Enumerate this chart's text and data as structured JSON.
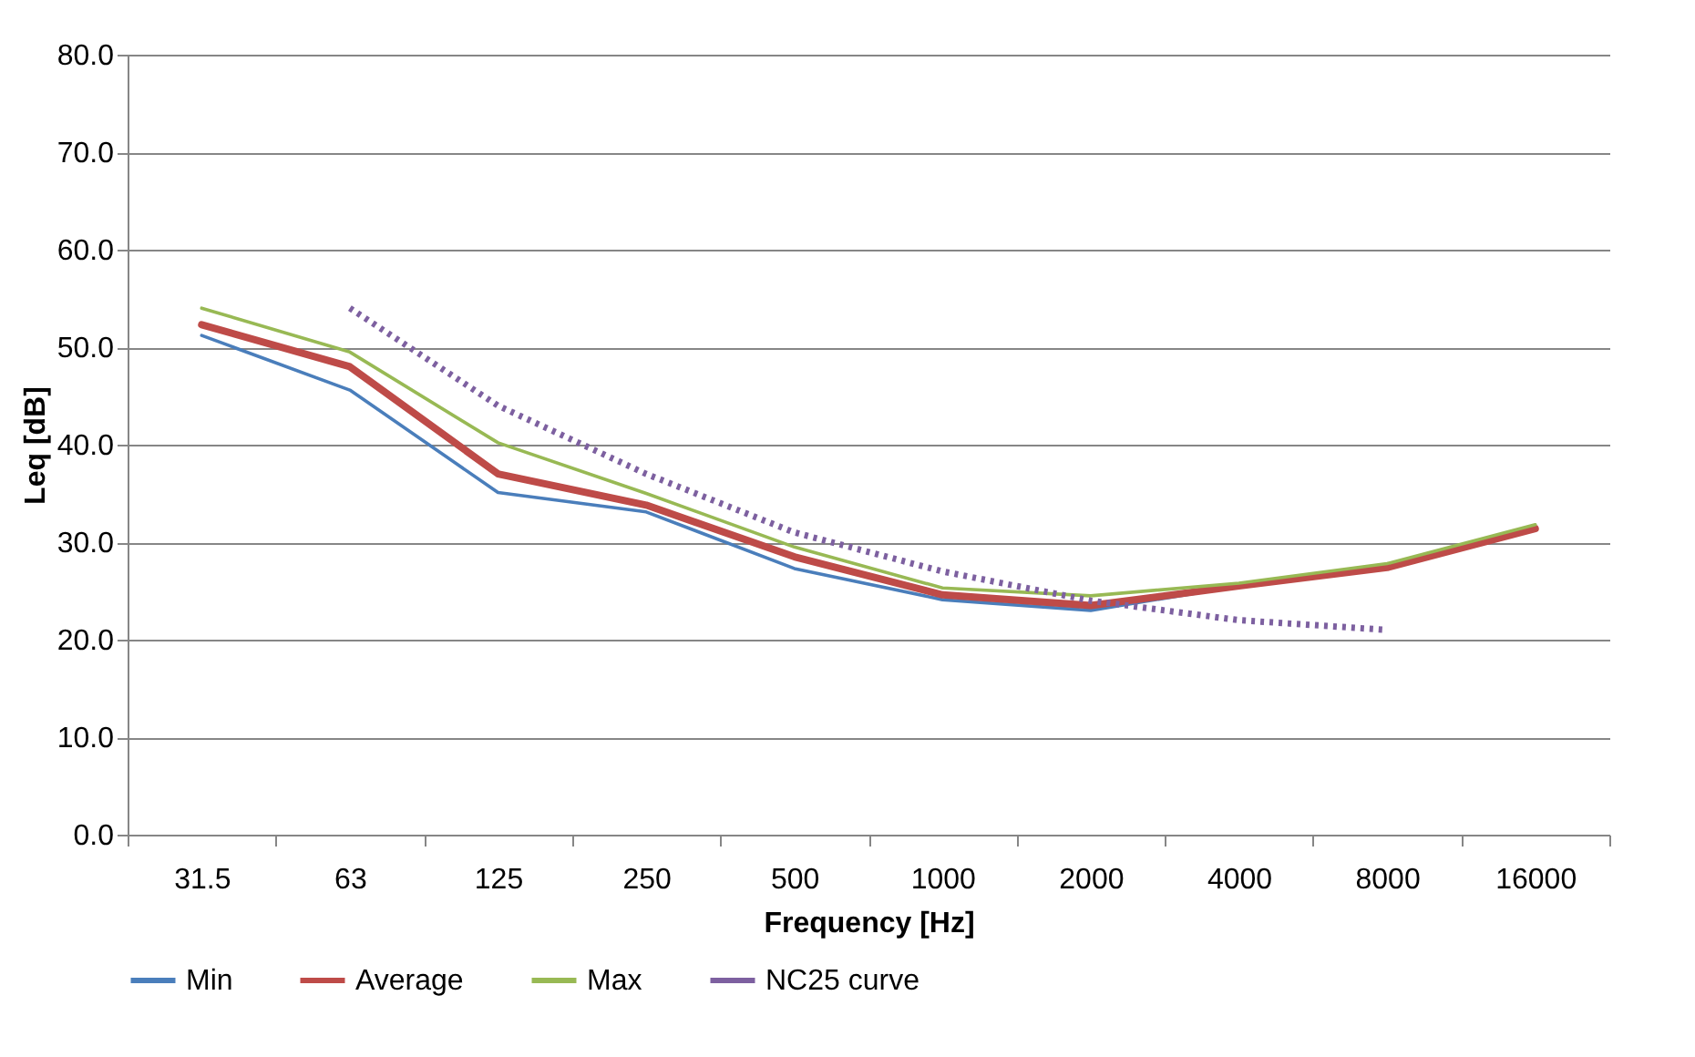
{
  "chart_data": {
    "type": "line",
    "xlabel": "Frequency [Hz]",
    "ylabel": "Leq [dB]",
    "categories": [
      "31.5",
      "63",
      "125",
      "250",
      "500",
      "1000",
      "2000",
      "4000",
      "8000",
      "16000"
    ],
    "series": [
      {
        "name": "Min",
        "color": "#4a7ebb",
        "values": [
          51.2,
          45.6,
          35.1,
          33.1,
          27.3,
          24.1,
          23.0,
          25.5,
          27.5,
          null
        ]
      },
      {
        "name": "Average",
        "color": "#be4b48",
        "values": [
          52.3,
          48.0,
          37.0,
          33.8,
          28.5,
          24.6,
          23.5,
          25.5,
          27.4,
          31.4
        ]
      },
      {
        "name": "Max",
        "color": "#98b954",
        "values": [
          54.0,
          49.5,
          40.2,
          35.0,
          29.5,
          25.3,
          24.5,
          25.8,
          27.8,
          31.8
        ]
      },
      {
        "name": "NC25 curve",
        "color": "#7d60a0",
        "line_style": "dotted",
        "values": [
          null,
          54,
          44,
          37,
          31,
          27,
          24,
          22,
          21,
          null
        ]
      }
    ],
    "ylim": [
      0,
      80
    ],
    "yticks": [
      {
        "value": 0,
        "label": "0.0"
      },
      {
        "value": 10,
        "label": "10.0"
      },
      {
        "value": 20,
        "label": "20.0"
      },
      {
        "value": 30,
        "label": "30.0"
      },
      {
        "value": 40,
        "label": "40.0"
      },
      {
        "value": 50,
        "label": "50.0"
      },
      {
        "value": 60,
        "label": "60.0"
      },
      {
        "value": 70,
        "label": "70.0"
      },
      {
        "value": 80,
        "label": "80.0"
      }
    ],
    "grid": "y",
    "legend": "bottom",
    "marker": "none",
    "line_style": "solid"
  }
}
